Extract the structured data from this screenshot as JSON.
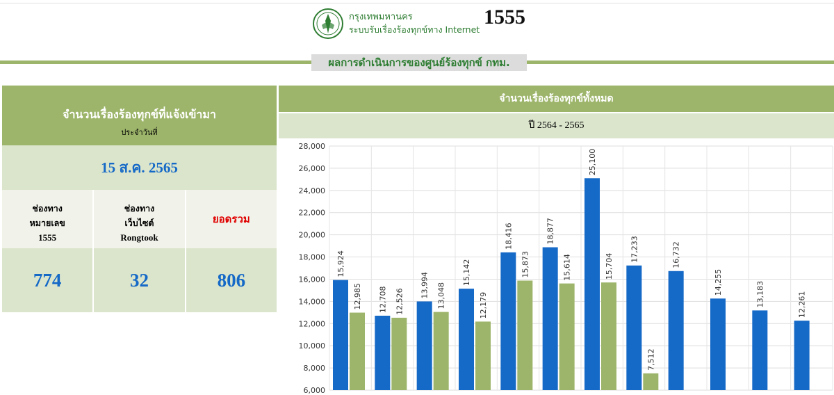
{
  "header": {
    "org_name": "กรุงเทพมหานคร",
    "system_name": "ระบบรับเรื่องร้องทุกข์ทาง Internet",
    "hotline": "1555",
    "banner": "ผลการดำเนินการของศูนย์ร้องทุกข์ กทม."
  },
  "daily": {
    "title": "จำนวนเรื่องร้องทุกข์ที่แจ้งเข้ามา",
    "subtitle": "ประจำวันที่",
    "date": "15 ส.ค. 2565",
    "channels": [
      {
        "line1": "ช่องทาง",
        "line2": "หมายเลข",
        "line3": "1555",
        "value": "774"
      },
      {
        "line1": "ช่องทาง",
        "line2": "เว็บไซต์",
        "line3": "Rongtook",
        "value": "32"
      }
    ],
    "total_label": "ยอดรวม",
    "total_value": "806"
  },
  "chart_panel": {
    "title": "จำนวนเรื่องร้องทุกข์ทั้งหมด",
    "year_range": "ปี 2564 - 2565"
  },
  "colors": {
    "accent_green": "#9db56a",
    "light_green": "#dbe5cc",
    "series_blue": "#1569c7",
    "series_green": "#9db56a",
    "total_red": "#e00000"
  },
  "chart_data": {
    "type": "bar",
    "ylim": [
      6000,
      28000
    ],
    "yticks": [
      "6,000",
      "8,000",
      "10,000",
      "12,000",
      "14,000",
      "16,000",
      "18,000",
      "20,000",
      "22,000",
      "24,000",
      "26,000",
      "28,000"
    ],
    "grid": true,
    "series": [
      {
        "values": [
          15924,
          12708,
          13994,
          15142,
          18416,
          18877,
          25100,
          17233,
          16732,
          14255,
          13183,
          12261
        ],
        "labels": [
          "15,924",
          "12,708",
          "13,994",
          "15,142",
          "18,416",
          "18,877",
          "25,100",
          "17,233",
          "16,732",
          "14,255",
          "13,183",
          "12,261"
        ]
      },
      {
        "values": [
          12985,
          12526,
          13048,
          12179,
          15873,
          15614,
          15704,
          7512,
          null,
          null,
          null,
          null
        ],
        "labels": [
          "12,985",
          "12,526",
          "13,048",
          "12,179",
          "15,873",
          "15,614",
          "15,704",
          "7,512",
          "",
          "",
          "",
          ""
        ]
      }
    ]
  }
}
